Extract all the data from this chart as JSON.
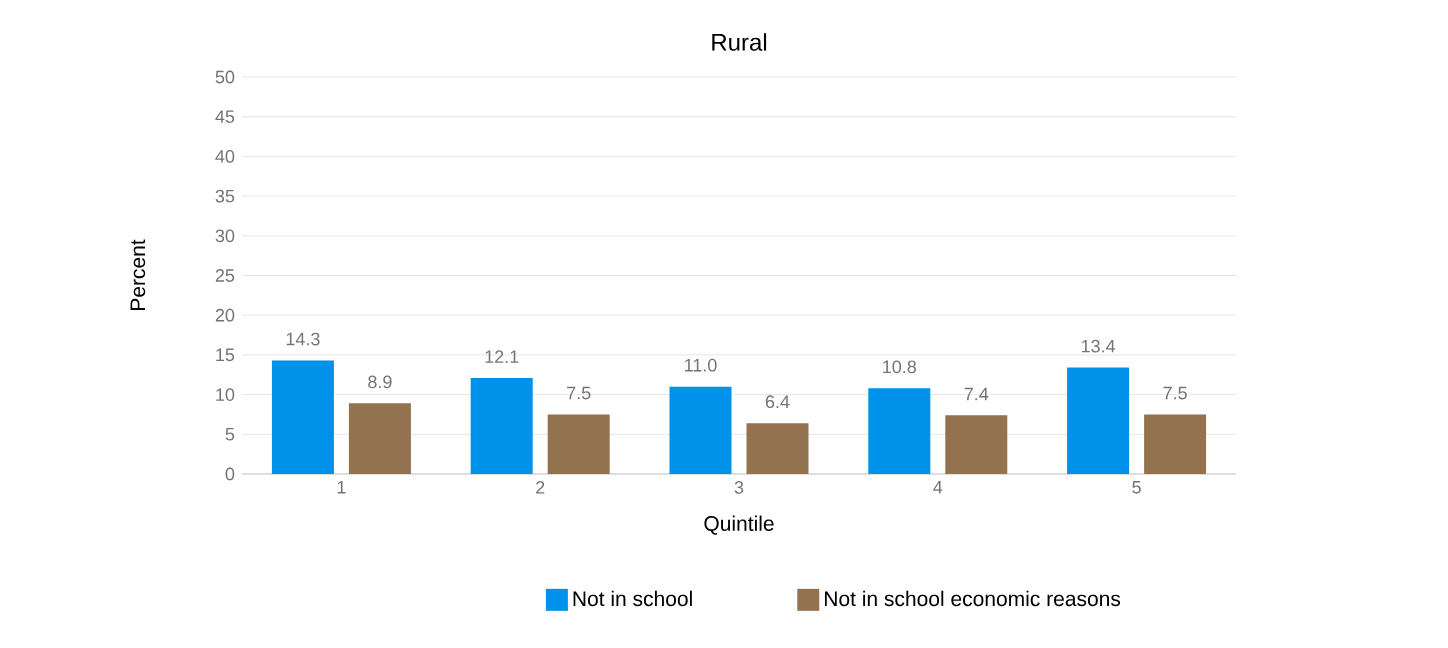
{
  "chart_data": {
    "type": "bar",
    "title": "Rural",
    "xlabel": "Quintile",
    "ylabel": "Percent",
    "categories": [
      "1",
      "2",
      "3",
      "4",
      "5"
    ],
    "series": [
      {
        "name": "Not in school",
        "color": "#0091ea",
        "values": [
          14.3,
          12.1,
          11.0,
          10.8,
          13.4
        ],
        "value_labels": [
          "14.3",
          "12.1",
          "11.0",
          "10.8",
          "13.4"
        ]
      },
      {
        "name": "Not in school economic reasons",
        "color": "#93734f",
        "values": [
          8.9,
          7.5,
          6.4,
          7.4,
          7.5
        ],
        "value_labels": [
          "8.9",
          "7.5",
          "6.4",
          "7.4",
          "7.5"
        ]
      }
    ],
    "ylim": [
      0,
      50
    ],
    "yticks": [
      0,
      5,
      10,
      15,
      20,
      25,
      30,
      35,
      40,
      45,
      50
    ],
    "grid": "y",
    "legend": "bottom"
  }
}
